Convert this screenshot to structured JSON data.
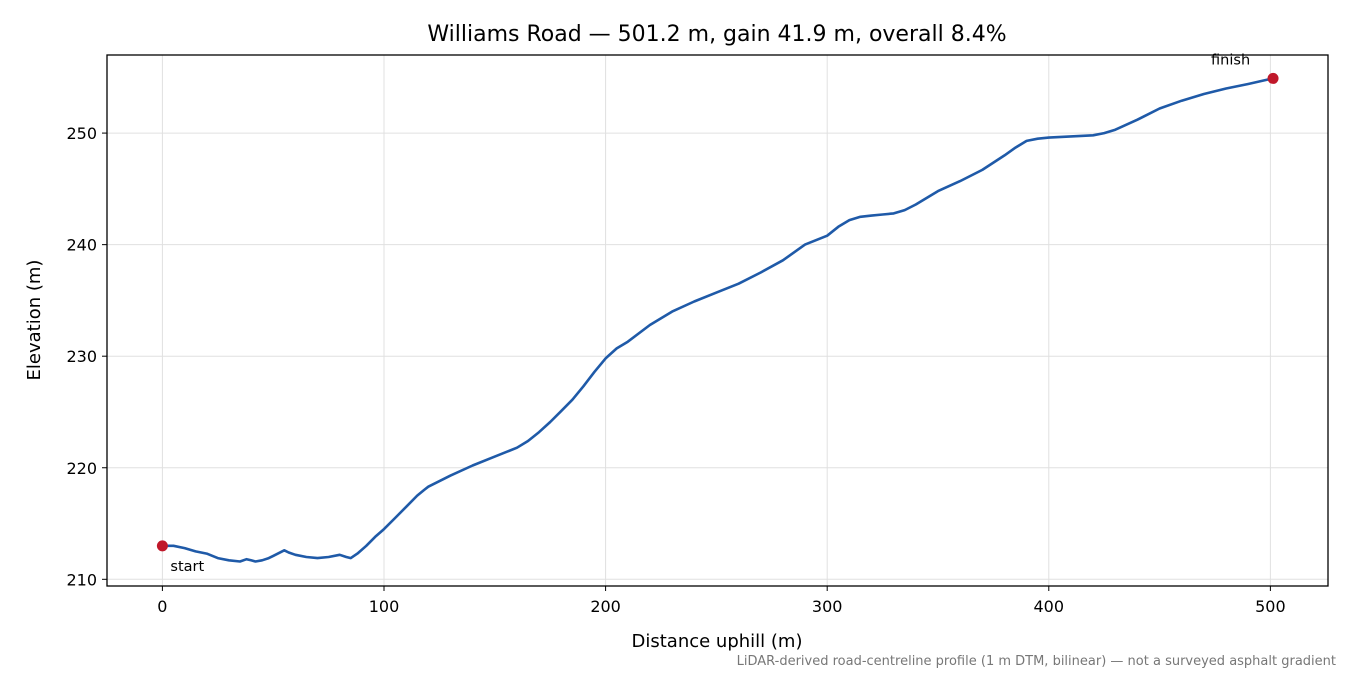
{
  "chart_data": {
    "type": "line",
    "title": "Williams Road — 501.2 m, gain 41.9 m, overall 8.4%",
    "xlabel": "Distance uphill (m)",
    "ylabel": "Elevation (m)",
    "xlim": [
      -25,
      526
    ],
    "ylim": [
      209.4,
      257.0
    ],
    "xticks": [
      0,
      100,
      200,
      300,
      400,
      500
    ],
    "yticks": [
      210,
      220,
      230,
      240,
      250
    ],
    "grid": true,
    "footnote": "LiDAR-derived road-centreline profile (1 m DTM, bilinear) — not a surveyed asphalt gradient",
    "series": [
      {
        "color": "#1f5aa8",
        "x": [
          0,
          5,
          10,
          15,
          20,
          25,
          30,
          35,
          38,
          40,
          42,
          45,
          48,
          50,
          55,
          57,
          60,
          65,
          70,
          75,
          80,
          83,
          85,
          88,
          92,
          96,
          100,
          105,
          110,
          115,
          118,
          120,
          130,
          140,
          150,
          160,
          165,
          170,
          175,
          180,
          185,
          190,
          195,
          200,
          205,
          210,
          220,
          230,
          240,
          250,
          260,
          270,
          280,
          290,
          300,
          305,
          310,
          315,
          320,
          325,
          330,
          335,
          340,
          350,
          360,
          370,
          380,
          385,
          390,
          395,
          400,
          410,
          420,
          425,
          430,
          440,
          450,
          460,
          470,
          480,
          490,
          501.2
        ],
        "y": [
          213.0,
          213.0,
          212.8,
          212.5,
          212.3,
          211.9,
          211.7,
          211.6,
          211.8,
          211.7,
          211.6,
          211.7,
          211.9,
          212.1,
          212.6,
          212.4,
          212.2,
          212.0,
          211.9,
          212.0,
          212.2,
          212.0,
          211.9,
          212.3,
          213.0,
          213.8,
          214.5,
          215.5,
          216.5,
          217.5,
          218.0,
          218.3,
          219.3,
          220.2,
          221.0,
          221.8,
          222.4,
          223.2,
          224.1,
          225.1,
          226.1,
          227.3,
          228.6,
          229.8,
          230.7,
          231.3,
          232.8,
          234.0,
          234.9,
          235.7,
          236.5,
          237.5,
          238.6,
          240.0,
          240.8,
          241.6,
          242.2,
          242.5,
          242.6,
          242.7,
          242.8,
          243.1,
          243.6,
          244.8,
          245.7,
          246.7,
          248.0,
          248.7,
          249.3,
          249.5,
          249.6,
          249.7,
          249.8,
          250.0,
          250.3,
          251.2,
          252.2,
          252.9,
          253.5,
          254.0,
          254.4,
          254.9
        ]
      }
    ],
    "markers": [
      {
        "x": 0,
        "y": 213.0,
        "label": "start",
        "color": "#c0182a"
      },
      {
        "x": 501.2,
        "y": 254.9,
        "label": "finish",
        "color": "#c0182a"
      }
    ]
  }
}
